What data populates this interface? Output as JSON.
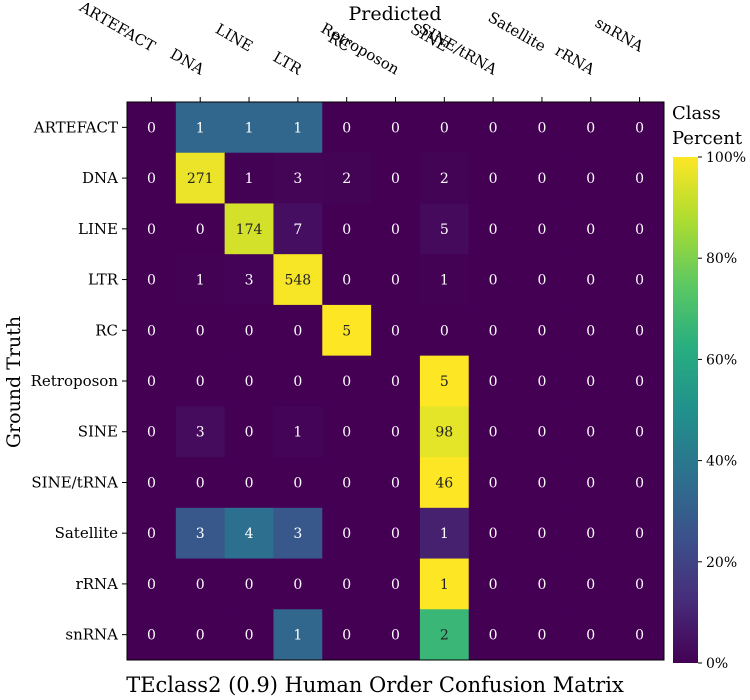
{
  "chart_data": {
    "type": "heatmap",
    "title": "TEclass2 (0.9) Human Order Confusion Matrix",
    "xlabel": "Predicted",
    "ylabel": "Ground Truth",
    "x_categories": [
      "ARTEFACT",
      "DNA",
      "LINE",
      "LTR",
      "RC",
      "Retroposon",
      "SINE",
      "SINE/tRNA",
      "Satellite",
      "rRNA",
      "snRNA"
    ],
    "y_categories": [
      "ARTEFACT",
      "DNA",
      "LINE",
      "LTR",
      "RC",
      "Retroposon",
      "SINE",
      "SINE/tRNA",
      "Satellite",
      "rRNA",
      "snRNA"
    ],
    "values": [
      [
        0,
        1,
        1,
        1,
        0,
        0,
        0,
        0,
        0,
        0,
        0
      ],
      [
        0,
        271,
        1,
        3,
        2,
        0,
        2,
        0,
        0,
        0,
        0
      ],
      [
        0,
        0,
        174,
        7,
        0,
        0,
        5,
        0,
        0,
        0,
        0
      ],
      [
        0,
        1,
        3,
        548,
        0,
        0,
        1,
        0,
        0,
        0,
        0
      ],
      [
        0,
        0,
        0,
        0,
        5,
        0,
        0,
        0,
        0,
        0,
        0
      ],
      [
        0,
        0,
        0,
        0,
        0,
        0,
        5,
        0,
        0,
        0,
        0
      ],
      [
        0,
        3,
        0,
        1,
        0,
        0,
        98,
        0,
        0,
        0,
        0
      ],
      [
        0,
        0,
        0,
        0,
        0,
        0,
        46,
        0,
        0,
        0,
        0
      ],
      [
        0,
        3,
        4,
        3,
        0,
        0,
        1,
        0,
        0,
        0,
        0
      ],
      [
        0,
        0,
        0,
        0,
        0,
        0,
        1,
        0,
        0,
        0,
        0
      ],
      [
        0,
        0,
        0,
        1,
        0,
        0,
        2,
        0,
        0,
        0,
        0
      ]
    ],
    "color_normalization": "row percent",
    "colormap": "viridis",
    "colorbar": {
      "title": [
        "Class",
        "Percent"
      ],
      "range": [
        0,
        100
      ],
      "ticks": [
        "0%",
        "20%",
        "40%",
        "60%",
        "80%",
        "100%"
      ]
    },
    "x_tick_layout": "top, rotated",
    "grid": false
  }
}
